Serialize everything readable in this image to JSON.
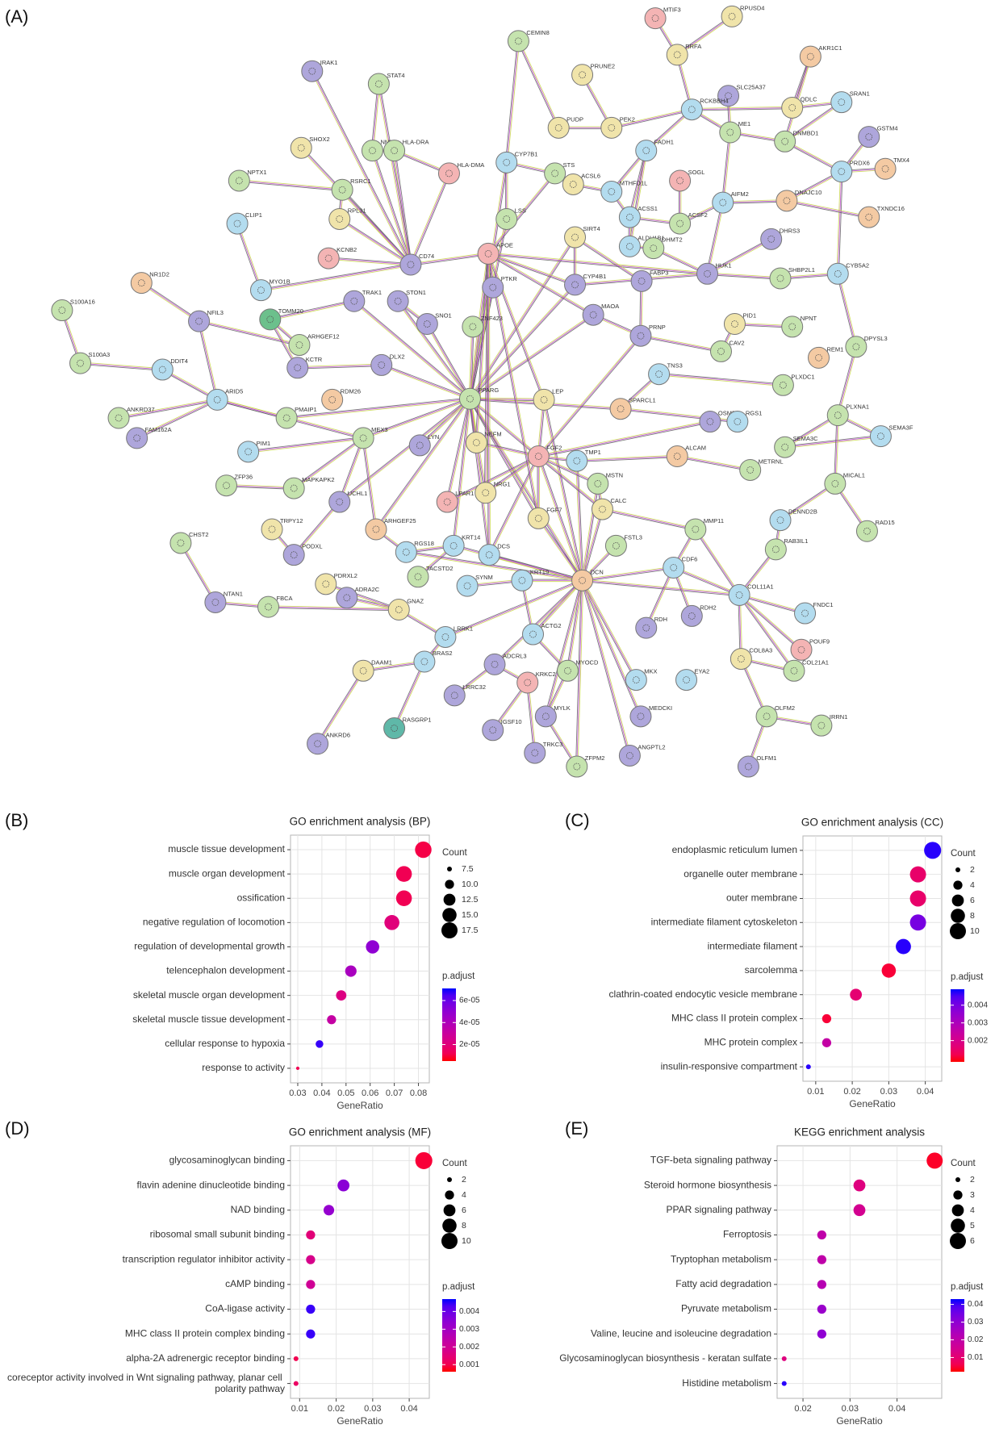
{
  "panel_labels": [
    "(A)",
    "(B)",
    "(C)",
    "(D)",
    "(E)"
  ],
  "network": {
    "nodes": [
      {
        "label": "MTIF3",
        "color": "#f4b4b4"
      },
      {
        "label": "RPUSD4",
        "color": "#f0e4aa"
      },
      {
        "label": "RRFA",
        "color": "#f0e4aa"
      },
      {
        "label": "CEMIN8",
        "color": "#c5e3ae"
      },
      {
        "label": "IRAK1",
        "color": "#aea6db"
      },
      {
        "label": "STAT4",
        "color": "#c5e3ae"
      },
      {
        "label": "PRUNE2",
        "color": "#f0e4aa"
      },
      {
        "label": "AKR1C1",
        "color": "#f4caa3"
      },
      {
        "label": "SLC25A37",
        "color": "#aea6db"
      },
      {
        "label": "RCKBBH4",
        "color": "#b3dcef"
      },
      {
        "label": "SRAN1",
        "color": "#b3dcef"
      },
      {
        "label": "QDLC",
        "color": "#f0e4aa"
      },
      {
        "label": "GSTM4",
        "color": "#aea6db"
      },
      {
        "label": "PUDP",
        "color": "#f0e4aa"
      },
      {
        "label": "PEK2",
        "color": "#f0e4aa"
      },
      {
        "label": "ME1",
        "color": "#c5e3ae"
      },
      {
        "label": "DNMBD1",
        "color": "#c5e3ae"
      },
      {
        "label": "SHOX2",
        "color": "#f0e4aa"
      },
      {
        "label": "NMH",
        "color": "#c5e3ae"
      },
      {
        "label": "HLA-DRA",
        "color": "#c5e3ae"
      },
      {
        "label": "HLA-DMA",
        "color": "#f4b4b4"
      },
      {
        "label": "CYP7B1",
        "color": "#b3dcef"
      },
      {
        "label": "FADH1",
        "color": "#b3dcef"
      },
      {
        "label": "SOGL",
        "color": "#f4b4b4"
      },
      {
        "label": "TMX4",
        "color": "#f4caa3"
      },
      {
        "label": "PRDX6",
        "color": "#b3dcef"
      },
      {
        "label": "NPTX1",
        "color": "#c5e3ae"
      },
      {
        "label": "RSRC1",
        "color": "#c5e3ae"
      },
      {
        "label": "STS",
        "color": "#c5e3ae"
      },
      {
        "label": "ACSL6",
        "color": "#f0e4aa"
      },
      {
        "label": "MTHFD1L",
        "color": "#b3dcef"
      },
      {
        "label": "ACSS1",
        "color": "#b3dcef"
      },
      {
        "label": "ACSF2",
        "color": "#c5e3ae"
      },
      {
        "label": "AIFM2",
        "color": "#b3dcef"
      },
      {
        "label": "DNAJC10",
        "color": "#f4caa3"
      },
      {
        "label": "TXNDC16",
        "color": "#f4caa3"
      },
      {
        "label": "CLIP1",
        "color": "#b3dcef"
      },
      {
        "label": "RPL31",
        "color": "#f0e4aa"
      },
      {
        "label": "LSS",
        "color": "#c5e3ae"
      },
      {
        "label": "ALDH1B1",
        "color": "#b3dcef"
      },
      {
        "label": "DHMT2",
        "color": "#c5e3ae"
      },
      {
        "label": "DHRS3",
        "color": "#aea6db"
      },
      {
        "label": "KCNB2",
        "color": "#f4b4b4"
      },
      {
        "label": "CD74",
        "color": "#aea6db"
      },
      {
        "label": "APOE",
        "color": "#f4b4b4"
      },
      {
        "label": "SIRT4",
        "color": "#f0e4aa"
      },
      {
        "label": "NR1D2",
        "color": "#f4caa3"
      },
      {
        "label": "MYO1B",
        "color": "#b3dcef"
      },
      {
        "label": "CYP4B1",
        "color": "#aea6db"
      },
      {
        "label": "HUK1",
        "color": "#aea6db"
      },
      {
        "label": "SHBP2L1",
        "color": "#c5e3ae"
      },
      {
        "label": "CYB5A2",
        "color": "#b3dcef"
      },
      {
        "label": "S100A16",
        "color": "#c5e3ae"
      },
      {
        "label": "TRAK1",
        "color": "#aea6db"
      },
      {
        "label": "STON1",
        "color": "#aea6db"
      },
      {
        "label": "PTKR",
        "color": "#aea6db"
      },
      {
        "label": "FABP3",
        "color": "#aea6db"
      },
      {
        "label": "NFIL3",
        "color": "#aea6db"
      },
      {
        "label": "TOMM20",
        "color": "#6cc08c"
      },
      {
        "label": "SNO1",
        "color": "#aea6db"
      },
      {
        "label": "ZNF423",
        "color": "#c5e3ae"
      },
      {
        "label": "MAOA",
        "color": "#aea6db"
      },
      {
        "label": "PRNP",
        "color": "#aea6db"
      },
      {
        "label": "PID1",
        "color": "#f0e4aa"
      },
      {
        "label": "NPNT",
        "color": "#c5e3ae"
      },
      {
        "label": "DPYSL3",
        "color": "#c5e3ae"
      },
      {
        "label": "S100A3",
        "color": "#c5e3ae"
      },
      {
        "label": "ARHGEF12",
        "color": "#c5e3ae"
      },
      {
        "label": "KCTR",
        "color": "#aea6db"
      },
      {
        "label": "DLX2",
        "color": "#aea6db"
      },
      {
        "label": "CAV2",
        "color": "#c5e3ae"
      },
      {
        "label": "REM1",
        "color": "#f4caa3"
      },
      {
        "label": "DDIT4",
        "color": "#b3dcef"
      },
      {
        "label": "PLXDC1",
        "color": "#c5e3ae"
      },
      {
        "label": "TNS3",
        "color": "#b3dcef"
      },
      {
        "label": "ANKRD37",
        "color": "#c5e3ae"
      },
      {
        "label": "ARID5",
        "color": "#b3dcef"
      },
      {
        "label": "RDM26",
        "color": "#f4caa3"
      },
      {
        "label": "PPARG",
        "color": "#c5e3ae"
      },
      {
        "label": "LEP",
        "color": "#f0e4aa"
      },
      {
        "label": "SPARCL1",
        "color": "#f4caa3"
      },
      {
        "label": "OSMR",
        "color": "#aea6db"
      },
      {
        "label": "PLXNA1",
        "color": "#c5e3ae"
      },
      {
        "label": "RGS1",
        "color": "#b3dcef"
      },
      {
        "label": "PMAIP1",
        "color": "#c5e3ae"
      },
      {
        "label": "FAM162A",
        "color": "#aea6db"
      },
      {
        "label": "MEX3",
        "color": "#c5e3ae"
      },
      {
        "label": "LYN",
        "color": "#aea6db"
      },
      {
        "label": "NEFM",
        "color": "#f0e4aa"
      },
      {
        "label": "SEMA3F",
        "color": "#b3dcef"
      },
      {
        "label": "SEMA3C",
        "color": "#c5e3ae"
      },
      {
        "label": "PIM1",
        "color": "#b3dcef"
      },
      {
        "label": "FGF2",
        "color": "#f4b4b4"
      },
      {
        "label": "TMP1",
        "color": "#b3dcef"
      },
      {
        "label": "ALCAM",
        "color": "#f4caa3"
      },
      {
        "label": "METRNL",
        "color": "#c5e3ae"
      },
      {
        "label": "ZFP36",
        "color": "#c5e3ae"
      },
      {
        "label": "MAPKAPK2",
        "color": "#c5e3ae"
      },
      {
        "label": "UCHL1",
        "color": "#aea6db"
      },
      {
        "label": "NRG1",
        "color": "#f0e4aa"
      },
      {
        "label": "MSTN",
        "color": "#c5e3ae"
      },
      {
        "label": "MICAL1",
        "color": "#c5e3ae"
      },
      {
        "label": "LPAR1",
        "color": "#f4b4b4"
      },
      {
        "label": "CALC",
        "color": "#f0e4aa"
      },
      {
        "label": "FGF7",
        "color": "#f0e4aa"
      },
      {
        "label": "DENND2B",
        "color": "#b3dcef"
      },
      {
        "label": "RAD15",
        "color": "#c5e3ae"
      },
      {
        "label": "MMP11",
        "color": "#c5e3ae"
      },
      {
        "label": "CHST2",
        "color": "#c5e3ae"
      },
      {
        "label": "TRPY12",
        "color": "#f0e4aa"
      },
      {
        "label": "ARHGEF25",
        "color": "#f4caa3"
      },
      {
        "label": "RGS18",
        "color": "#b3dcef"
      },
      {
        "label": "KRT14",
        "color": "#b3dcef"
      },
      {
        "label": "DCS",
        "color": "#b3dcef"
      },
      {
        "label": "FSTL3",
        "color": "#c5e3ae"
      },
      {
        "label": "RAB3IL1",
        "color": "#c5e3ae"
      },
      {
        "label": "PODXL",
        "color": "#aea6db"
      },
      {
        "label": "TACSTD2",
        "color": "#c5e3ae"
      },
      {
        "label": "SYNM",
        "color": "#b3dcef"
      },
      {
        "label": "KRT19",
        "color": "#b3dcef"
      },
      {
        "label": "DCN",
        "color": "#f4caa3"
      },
      {
        "label": "CDF6",
        "color": "#b3dcef"
      },
      {
        "label": "COL11A1",
        "color": "#b3dcef"
      },
      {
        "label": "PDRXL2",
        "color": "#f0e4aa"
      },
      {
        "label": "ADRA2C",
        "color": "#aea6db"
      },
      {
        "label": "GNAZ",
        "color": "#f0e4aa"
      },
      {
        "label": "FBCA",
        "color": "#c5e3ae"
      },
      {
        "label": "NTAN1",
        "color": "#aea6db"
      },
      {
        "label": "FNDC1",
        "color": "#b3dcef"
      },
      {
        "label": "RDH2",
        "color": "#aea6db"
      },
      {
        "label": "RDH",
        "color": "#aea6db"
      },
      {
        "label": "POUF9",
        "color": "#f4b4b4"
      },
      {
        "label": "DAAM1",
        "color": "#f0e4aa"
      },
      {
        "label": "LRRK1",
        "color": "#b3dcef"
      },
      {
        "label": "ACTG2",
        "color": "#b3dcef"
      },
      {
        "label": "COL8A3",
        "color": "#f0e4aa"
      },
      {
        "label": "BRAS2",
        "color": "#b3dcef"
      },
      {
        "label": "ADCRL3",
        "color": "#aea6db"
      },
      {
        "label": "MYOCD",
        "color": "#c5e3ae"
      },
      {
        "label": "COL21A1",
        "color": "#c5e3ae"
      },
      {
        "label": "KRKC2",
        "color": "#f4b4b4"
      },
      {
        "label": "MKX",
        "color": "#b3dcef"
      },
      {
        "label": "EYA2",
        "color": "#b3dcef"
      },
      {
        "label": "LRRC32",
        "color": "#aea6db"
      },
      {
        "label": "RASGRP1",
        "color": "#5fb8a8"
      },
      {
        "label": "MYLK",
        "color": "#aea6db"
      },
      {
        "label": "MEDCKI",
        "color": "#aea6db"
      },
      {
        "label": "OLFM2",
        "color": "#c5e3ae"
      },
      {
        "label": "IRRN1",
        "color": "#c5e3ae"
      },
      {
        "label": "ANKRD6",
        "color": "#aea6db"
      },
      {
        "label": "IGSF10",
        "color": "#aea6db"
      },
      {
        "label": "TRKC3",
        "color": "#aea6db"
      },
      {
        "label": "ZFPM2",
        "color": "#c5e3ae"
      },
      {
        "label": "ANGPTL2",
        "color": "#aea6db"
      },
      {
        "label": "OLFM1",
        "color": "#aea6db"
      }
    ]
  },
  "chart_data": [
    {
      "type": "dot",
      "title": "GO enrichment analysis (BP)",
      "x_label": "GeneRatio",
      "categories": [
        "muscle tissue development",
        "muscle organ development",
        "ossification",
        "negative regulation of locomotion",
        "regulation of developmental growth",
        "telencephalon development",
        "skeletal muscle organ development",
        "skeletal muscle tissue development",
        "cellular response to hypoxia",
        "response to activity"
      ],
      "values": [
        0.082,
        0.074,
        0.074,
        0.069,
        0.061,
        0.052,
        0.048,
        0.044,
        0.039,
        0.03
      ],
      "sizes": [
        18,
        17,
        17,
        16,
        14,
        12,
        11,
        10,
        9,
        7
      ],
      "p_adjust": [
        1e-05,
        1.2e-05,
        1.2e-05,
        2e-05,
        5e-05,
        4.2e-05,
        2.2e-05,
        3.2e-05,
        6.8e-05,
        1.2e-05
      ],
      "xlim": [
        0.027,
        0.0845
      ],
      "xticks": [
        0.03,
        0.04,
        0.05,
        0.06,
        0.07,
        0.08
      ],
      "grid": true,
      "size_title": "Count",
      "size_ticks": [
        7.5,
        {
          "value": 10,
          "label": "10.0"
        },
        12.5,
        {
          "value": 15,
          "label": "15.0"
        },
        17.5
      ],
      "color_title": "p.adjust",
      "color_lim": [
        5e-06,
        7.1e-05
      ],
      "color_ticks": [
        {
          "value": 6e-05,
          "label": "6e-05"
        },
        {
          "value": 4e-05,
          "label": "4e-05"
        },
        {
          "value": 2e-05,
          "label": "2e-05"
        }
      ],
      "low_color": "#ff0000",
      "high_color": "#0000ff"
    },
    {
      "type": "dot",
      "title": "GO enrichment analysis (CC)",
      "x_label": "GeneRatio",
      "categories": [
        "endoplasmic reticulum lumen",
        "organelle outer membrane",
        "outer membrane",
        "intermediate filament cytoskeleton",
        "intermediate filament",
        "sarcolemma",
        "clathrin-coated endocytic vesicle membrane",
        "MHC class II protein complex",
        "MHC protein complex",
        "insulin-responsive compartment"
      ],
      "values": [
        0.042,
        0.038,
        0.038,
        0.038,
        0.034,
        0.03,
        0.021,
        0.013,
        0.013,
        0.008
      ],
      "sizes": [
        11,
        10,
        10,
        10,
        9,
        8,
        6,
        4,
        4,
        2
      ],
      "p_adjust": [
        0.0048,
        0.0015,
        0.0015,
        0.004,
        0.0048,
        0.001,
        0.0016,
        0.001,
        0.0025,
        0.0048
      ],
      "xlim": [
        0.0065,
        0.0445
      ],
      "xticks": [
        0.01,
        0.02,
        0.03,
        0.04
      ],
      "grid": true,
      "size_title": "Count",
      "size_ticks": [
        2,
        4,
        6,
        8,
        10
      ],
      "color_title": "p.adjust",
      "color_lim": [
        0.0008,
        0.0049
      ],
      "color_ticks": [
        0.004,
        0.003,
        0.002
      ],
      "low_color": "#ff0000",
      "high_color": "#0000ff"
    },
    {
      "type": "dot",
      "title": "GO enrichment analysis (MF)",
      "x_label": "GeneRatio",
      "categories": [
        "glycosaminoglycan binding",
        "flavin adenine dinucleotide binding",
        "NAD binding",
        "ribosomal small subunit binding",
        "transcription regulator inhibitor activity",
        "cAMP binding",
        "CoA-ligase activity",
        "MHC class II protein complex binding",
        "alpha-2A adrenergic receptor binding",
        "coreceptor activity involved in Wnt signaling pathway, planar cell polarity pathway"
      ],
      "values": [
        0.044,
        0.022,
        0.018,
        0.013,
        0.013,
        0.013,
        0.013,
        0.013,
        0.009,
        0.009
      ],
      "sizes": [
        11,
        6,
        5,
        4,
        4,
        4,
        4,
        4,
        2,
        2
      ],
      "p_adjust": [
        0.0008,
        0.0035,
        0.0033,
        0.0015,
        0.0018,
        0.002,
        0.0045,
        0.0045,
        0.001,
        0.0012
      ],
      "xlim": [
        0.0075,
        0.0455
      ],
      "xticks": [
        0.01,
        0.02,
        0.03,
        0.04
      ],
      "grid": true,
      "size_title": "Count",
      "size_ticks": [
        2,
        4,
        6,
        8,
        10
      ],
      "color_title": "p.adjust",
      "color_lim": [
        0.0006,
        0.0047
      ],
      "color_ticks": [
        0.004,
        0.003,
        0.002,
        0.001
      ],
      "low_color": "#ff0000",
      "high_color": "#0000ff"
    },
    {
      "type": "dot",
      "title": "KEGG enrichment analysis",
      "x_label": "GeneRatio",
      "categories": [
        "TGF-beta signaling pathway",
        "Steroid hormone biosynthesis",
        "PPAR signaling pathway",
        "Ferroptosis",
        "Tryptophan metabolism",
        "Fatty acid degradation",
        "Pyruvate metabolism",
        "Valine, leucine and isoleucine degradation",
        "Glycosaminoglycan biosynthesis - keratan sulfate",
        "Histidine metabolism"
      ],
      "values": [
        0.048,
        0.032,
        0.032,
        0.024,
        0.024,
        0.024,
        0.024,
        0.024,
        0.016,
        0.016
      ],
      "sizes": [
        6,
        4,
        4,
        3,
        3,
        3,
        3,
        3,
        2,
        2
      ],
      "p_adjust": [
        0.003,
        0.012,
        0.015,
        0.02,
        0.02,
        0.022,
        0.028,
        0.03,
        0.012,
        0.042
      ],
      "xlim": [
        0.0145,
        0.0495
      ],
      "xticks": [
        0.02,
        0.03,
        0.04
      ],
      "grid": true,
      "size_title": "Count",
      "size_ticks": [
        2,
        3,
        4,
        5,
        6
      ],
      "color_title": "p.adjust",
      "color_lim": [
        0.002,
        0.043
      ],
      "color_ticks": [
        0.04,
        0.03,
        0.02,
        0.01
      ],
      "low_color": "#ff0000",
      "high_color": "#0000ff"
    }
  ]
}
